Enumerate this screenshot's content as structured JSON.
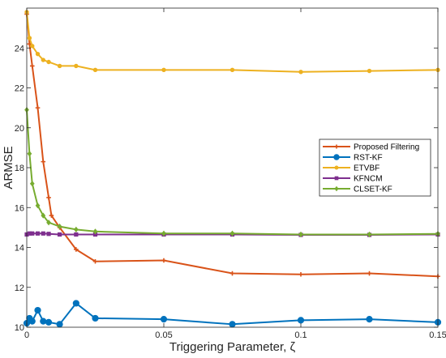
{
  "chart_data": {
    "type": "line",
    "xlabel": "Triggering Parameter, ζ",
    "ylabel": "ARMSE",
    "xlim": [
      0,
      0.15
    ],
    "ylim": [
      10,
      26
    ],
    "xticks": [
      0,
      0.05,
      0.1,
      0.15
    ],
    "xtick_labels": [
      "0",
      "0.05",
      "0.1",
      "0.15"
    ],
    "yticks": [
      10,
      12,
      14,
      16,
      18,
      20,
      22,
      24
    ],
    "ytick_labels": [
      "10",
      "12",
      "14",
      "16",
      "18",
      "20",
      "22",
      "24"
    ],
    "grid": false,
    "legend_position": "right",
    "series": [
      {
        "name": "Proposed Filtering",
        "color": "#D95319",
        "marker": "plus",
        "x": [
          0,
          0.001,
          0.002,
          0.004,
          0.006,
          0.008,
          0.009,
          0.012,
          0.018,
          0.025,
          0.05,
          0.075,
          0.1,
          0.125,
          0.15
        ],
        "y": [
          25.7,
          24.2,
          23.1,
          21.0,
          18.3,
          16.5,
          15.6,
          15.0,
          13.9,
          13.3,
          13.35,
          12.7,
          12.65,
          12.7,
          12.55
        ]
      },
      {
        "name": "RST-KF",
        "color": "#0072BD",
        "marker": "circle",
        "x": [
          0,
          0.001,
          0.002,
          0.004,
          0.006,
          0.008,
          0.012,
          0.018,
          0.025,
          0.05,
          0.075,
          0.1,
          0.125,
          0.15
        ],
        "y": [
          10.2,
          10.45,
          10.3,
          10.85,
          10.3,
          10.25,
          10.15,
          11.2,
          10.45,
          10.4,
          10.15,
          10.35,
          10.4,
          10.25
        ]
      },
      {
        "name": "ETVBF",
        "color": "#EDB120",
        "marker": "dot",
        "x": [
          0,
          0.001,
          0.002,
          0.004,
          0.006,
          0.008,
          0.012,
          0.018,
          0.025,
          0.05,
          0.075,
          0.1,
          0.125,
          0.15
        ],
        "y": [
          25.8,
          24.5,
          24.1,
          23.7,
          23.4,
          23.3,
          23.1,
          23.1,
          22.9,
          22.9,
          22.9,
          22.8,
          22.85,
          22.9
        ]
      },
      {
        "name": "KFNCM",
        "color": "#7E2F8E",
        "marker": "square",
        "x": [
          0,
          0.001,
          0.002,
          0.004,
          0.006,
          0.008,
          0.012,
          0.018,
          0.025,
          0.05,
          0.075,
          0.1,
          0.125,
          0.15
        ],
        "y": [
          14.65,
          14.7,
          14.7,
          14.7,
          14.7,
          14.68,
          14.65,
          14.65,
          14.65,
          14.65,
          14.65,
          14.63,
          14.63,
          14.65
        ]
      },
      {
        "name": "CLSET-KF",
        "color": "#77AC30",
        "marker": "diamond",
        "x": [
          0,
          0.001,
          0.002,
          0.004,
          0.006,
          0.008,
          0.012,
          0.018,
          0.025,
          0.05,
          0.075,
          0.1,
          0.125,
          0.15
        ],
        "y": [
          20.9,
          18.7,
          17.2,
          16.1,
          15.6,
          15.25,
          15.05,
          14.9,
          14.8,
          14.7,
          14.7,
          14.65,
          14.65,
          14.68
        ]
      }
    ]
  }
}
